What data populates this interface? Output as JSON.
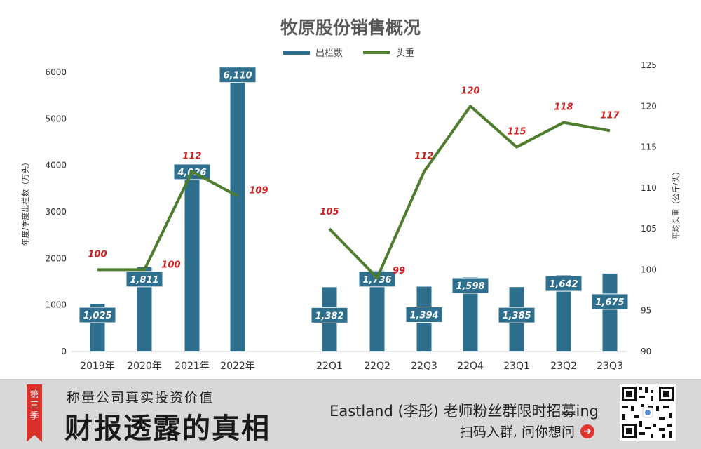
{
  "chart_data": {
    "type": "bar+line",
    "title": "牧原股份销售概况",
    "legend": [
      {
        "name": "出栏数",
        "color": "#2e6f8e",
        "kind": "bar"
      },
      {
        "name": "头重",
        "color": "#4e7d2e",
        "kind": "line"
      }
    ],
    "legend_position": "top-center",
    "ylabel_left": "年度/季度出栏数（万头）",
    "ylabel_right": "平均头重（公斤/头）",
    "ylim_left": [
      0,
      6000
    ],
    "ylim_right": [
      90,
      125
    ],
    "yticks_left": [
      "0",
      "1000",
      "2000",
      "3000",
      "4000",
      "5000",
      "6000"
    ],
    "yticks_right": [
      "90",
      "95",
      "100",
      "105",
      "110",
      "115",
      "120",
      "125"
    ],
    "groups": [
      {
        "categories": [
          "2019年",
          "2020年",
          "2021年",
          "2022年"
        ],
        "bar_values": [
          1025,
          1811,
          4026,
          6110
        ],
        "bar_labels": [
          "1,025",
          "1,811",
          "4,026",
          "6,110"
        ],
        "line_values": [
          100,
          100,
          112,
          109
        ],
        "line_labels": [
          "100",
          "100",
          "112",
          "109"
        ]
      },
      {
        "categories": [
          "22Q1",
          "22Q2",
          "22Q3",
          "22Q4",
          "23Q1",
          "23Q2",
          "23Q3"
        ],
        "bar_values": [
          1382,
          1736,
          1394,
          1598,
          1385,
          1642,
          1675
        ],
        "bar_labels": [
          "1,382",
          "1,736",
          "1,394",
          "1,598",
          "1,385",
          "1,642",
          "1,675"
        ],
        "line_values": [
          105,
          99,
          112,
          120,
          115,
          118,
          117
        ],
        "line_labels": [
          "105",
          "99",
          "112",
          "120",
          "115",
          "118",
          "117"
        ]
      }
    ],
    "grid": false,
    "colors": {
      "bar": "#2e6f8e",
      "line": "#4e7d2e",
      "line_label": "#cc1f1f",
      "bar_label": "#ffffff"
    }
  },
  "banner": {
    "season_tag": [
      "第",
      "三",
      "季"
    ],
    "subtitle": "称量公司真实投资价值",
    "main_title": "财报透露的真相",
    "promo": "Eastland (李彤) 老师粉丝群限时招募ing",
    "scan_text": "扫码入群, 问你想问",
    "arrow_icon": "➜"
  }
}
